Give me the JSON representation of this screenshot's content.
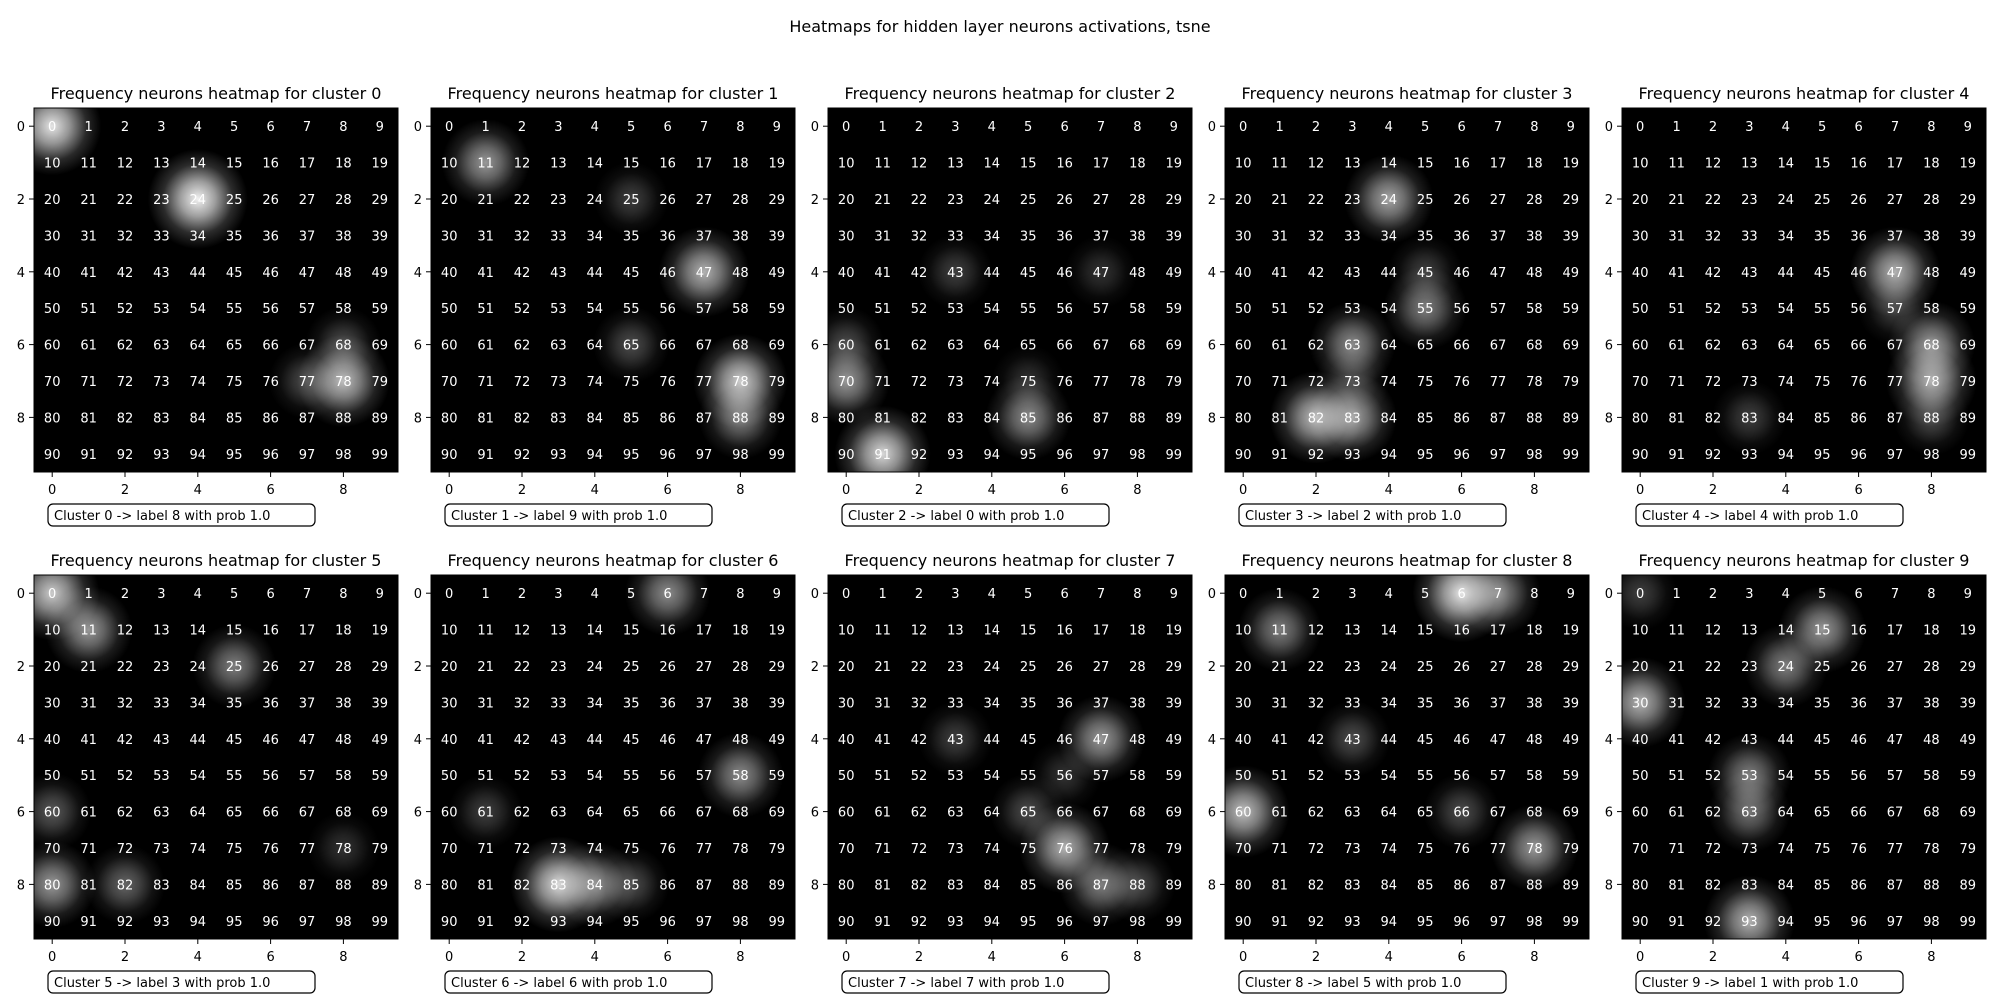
{
  "figure": {
    "suptitle": "Heatmaps for hidden layer neurons activations, tsne"
  },
  "chart_data": [
    {
      "type": "heatmap",
      "title": "Frequency neurons heatmap for cluster 0",
      "annotation": "Cluster 0 -> label 8 with prob 1.0",
      "hotspots": [
        [
          0,
          0,
          0.9
        ],
        [
          2,
          4,
          0.95
        ],
        [
          7,
          8,
          0.75
        ],
        [
          7,
          7,
          0.3
        ],
        [
          6,
          8,
          0.3
        ]
      ]
    },
    {
      "type": "heatmap",
      "title": "Frequency neurons heatmap for cluster 1",
      "annotation": "Cluster 1 -> label 9 with prob 1.0",
      "hotspots": [
        [
          1,
          1,
          0.6
        ],
        [
          4,
          7,
          0.7
        ],
        [
          7,
          8,
          0.8
        ],
        [
          8,
          8,
          0.5
        ],
        [
          6,
          5,
          0.3
        ],
        [
          2,
          5,
          0.25
        ]
      ]
    },
    {
      "type": "heatmap",
      "title": "Frequency neurons heatmap for cluster 2",
      "annotation": "Cluster 2 -> label 0 with prob 1.0",
      "hotspots": [
        [
          9,
          1,
          0.85
        ],
        [
          7,
          0,
          0.6
        ],
        [
          8,
          5,
          0.55
        ],
        [
          6,
          0,
          0.3
        ],
        [
          4,
          3,
          0.25
        ],
        [
          4,
          7,
          0.2
        ],
        [
          7,
          5,
          0.2
        ]
      ]
    },
    {
      "type": "heatmap",
      "title": "Frequency neurons heatmap for cluster 3",
      "annotation": "Cluster 3 -> label 2 with prob 1.0",
      "hotspots": [
        [
          8,
          2,
          0.75
        ],
        [
          8,
          3,
          0.65
        ],
        [
          2,
          4,
          0.65
        ],
        [
          6,
          3,
          0.55
        ],
        [
          5,
          5,
          0.5
        ],
        [
          7,
          3,
          0.25
        ],
        [
          4,
          5,
          0.25
        ]
      ]
    },
    {
      "type": "heatmap",
      "title": "Frequency neurons heatmap for cluster 4",
      "annotation": "Cluster 4 -> label 4 with prob 1.0",
      "hotspots": [
        [
          4,
          7,
          0.7
        ],
        [
          6,
          8,
          0.6
        ],
        [
          7,
          8,
          0.7
        ],
        [
          8,
          8,
          0.3
        ],
        [
          8,
          3,
          0.25
        ],
        [
          5,
          7,
          0.25
        ]
      ]
    },
    {
      "type": "heatmap",
      "title": "Frequency neurons heatmap for cluster 5",
      "annotation": "Cluster 5 -> label 3 with prob 1.0",
      "hotspots": [
        [
          0,
          0,
          0.8
        ],
        [
          1,
          1,
          0.6
        ],
        [
          2,
          5,
          0.5
        ],
        [
          8,
          0,
          0.6
        ],
        [
          8,
          2,
          0.4
        ],
        [
          6,
          0,
          0.35
        ],
        [
          7,
          8,
          0.2
        ]
      ]
    },
    {
      "type": "heatmap",
      "title": "Frequency neurons heatmap for cluster 6",
      "annotation": "Cluster 6 -> label 6 with prob 1.0",
      "hotspots": [
        [
          8,
          3,
          0.85
        ],
        [
          8,
          4,
          0.55
        ],
        [
          0,
          6,
          0.55
        ],
        [
          5,
          8,
          0.55
        ],
        [
          6,
          1,
          0.25
        ],
        [
          8,
          5,
          0.3
        ]
      ]
    },
    {
      "type": "heatmap",
      "title": "Frequency neurons heatmap for cluster 7",
      "annotation": "Cluster 7 -> label 7 with prob 1.0",
      "hotspots": [
        [
          4,
          7,
          0.6
        ],
        [
          7,
          6,
          0.7
        ],
        [
          8,
          7,
          0.5
        ],
        [
          8,
          8,
          0.3
        ],
        [
          6,
          5,
          0.3
        ],
        [
          4,
          3,
          0.25
        ],
        [
          5,
          6,
          0.2
        ]
      ]
    },
    {
      "type": "heatmap",
      "title": "Frequency neurons heatmap for cluster 8",
      "annotation": "Cluster 8 -> label 5 with prob 1.0",
      "hotspots": [
        [
          0,
          6,
          0.9
        ],
        [
          0,
          7,
          0.55
        ],
        [
          1,
          1,
          0.5
        ],
        [
          6,
          0,
          0.75
        ],
        [
          7,
          8,
          0.6
        ],
        [
          4,
          3,
          0.3
        ],
        [
          6,
          6,
          0.3
        ]
      ]
    },
    {
      "type": "heatmap",
      "title": "Frequency neurons heatmap for cluster 9",
      "annotation": "Cluster 9 -> label 1 with prob 1.0",
      "hotspots": [
        [
          3,
          0,
          0.7
        ],
        [
          1,
          5,
          0.6
        ],
        [
          2,
          4,
          0.5
        ],
        [
          5,
          3,
          0.5
        ],
        [
          6,
          3,
          0.45
        ],
        [
          9,
          3,
          0.7
        ],
        [
          0,
          0,
          0.25
        ]
      ]
    }
  ]
}
